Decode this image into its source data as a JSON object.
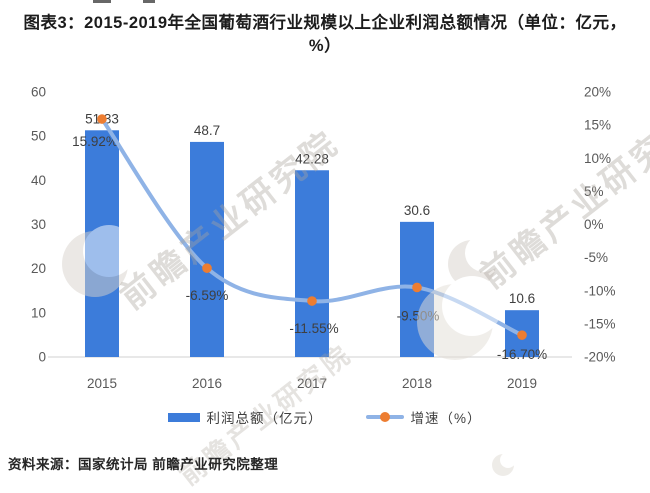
{
  "title": "图表3：2015-2019年全国葡萄酒行业规模以上企业利润总额情况（单位：亿元，%）",
  "source": "资料来源：国家统计局 前瞻产业研究院整理",
  "watermark": {
    "text": "前瞻产业研究院"
  },
  "colors": {
    "bar": "#3c7cda",
    "line": "#8fb3e6",
    "marker": "#ed7d31",
    "axis_text": "#595959",
    "label_text": "#3f3f3f",
    "baseline": "#d9d9d9",
    "title_text": "#1c1c1c",
    "watermark": "#aaa49c"
  },
  "chart_data": {
    "type": "bar",
    "combo": "bar+line",
    "title": "图表3：2015-2019年全国葡萄酒行业规模以上企业利润总额情况（单位：亿元，%）",
    "categories": [
      "2015",
      "2016",
      "2017",
      "2018",
      "2019"
    ],
    "series": [
      {
        "name": "利润总额（亿元）",
        "type": "bar",
        "axis": "left",
        "values": [
          51.33,
          48.7,
          42.28,
          30.6,
          10.6
        ],
        "labels": [
          "51.33",
          "48.7",
          "42.28",
          "30.6",
          "10.6"
        ],
        "color": "#3c7cda"
      },
      {
        "name": "增速（%）",
        "type": "line",
        "axis": "right",
        "values": [
          15.92,
          -6.59,
          -11.55,
          -9.5,
          -16.7
        ],
        "labels": [
          "15.92%",
          "-6.59%",
          "-11.55%",
          "-9.50%",
          "-16.70%"
        ],
        "line_color": "#8fb3e6",
        "marker_color": "#ed7d31"
      }
    ],
    "left_axis": {
      "min": 0,
      "max": 60,
      "step": 10,
      "ticks": [
        "60",
        "50",
        "40",
        "30",
        "20",
        "10",
        "0"
      ]
    },
    "right_axis": {
      "min": -20,
      "max": 20,
      "step": 5,
      "ticks": [
        "20%",
        "15%",
        "10%",
        "5%",
        "0%",
        "-5%",
        "-10%",
        "-15%",
        "-20%"
      ]
    },
    "legend": [
      "利润总额（亿元）",
      "增速（%）"
    ],
    "legend_position": "bottom",
    "grid": false,
    "xlabel": "",
    "ylabel_left": "亿元",
    "ylabel_right": "%"
  }
}
